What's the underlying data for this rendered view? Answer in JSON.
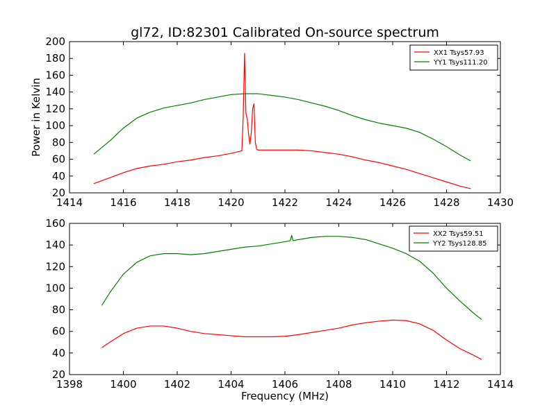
{
  "chart_data": [
    {
      "type": "line",
      "title": "gl72, ID:82301 Calibrated On-source spectrum",
      "xlabel": "",
      "ylabel": "Power in Kelvin",
      "xlim": [
        1414,
        1430
      ],
      "ylim": [
        20,
        200
      ],
      "xticks": [
        1414,
        1416,
        1418,
        1420,
        1422,
        1424,
        1426,
        1428,
        1430
      ],
      "yticks": [
        20,
        40,
        60,
        80,
        100,
        120,
        140,
        160,
        180,
        200
      ],
      "grid": false,
      "legend_position": "top-right",
      "series": [
        {
          "name": "XX1 Tsys57.93",
          "color": "#ff0000",
          "x": [
            1414.9,
            1415.5,
            1416.0,
            1416.5,
            1417.0,
            1417.5,
            1418.0,
            1418.5,
            1419.0,
            1419.5,
            1420.0,
            1420.4,
            1420.45,
            1420.5,
            1420.55,
            1420.6,
            1420.65,
            1420.7,
            1420.75,
            1420.8,
            1420.85,
            1420.9,
            1420.95,
            1421.0,
            1421.5,
            1422.0,
            1422.5,
            1423.0,
            1423.5,
            1424.0,
            1424.5,
            1425.0,
            1425.5,
            1426.0,
            1426.5,
            1427.0,
            1427.5,
            1428.0,
            1428.5,
            1428.9
          ],
          "y": [
            31,
            38,
            44,
            49,
            52,
            54,
            57,
            59,
            62,
            64,
            67,
            70,
            110,
            186,
            115,
            108,
            90,
            78,
            92,
            120,
            126,
            80,
            72,
            71,
            71,
            71,
            71,
            70,
            68,
            66,
            63,
            59,
            56,
            52,
            48,
            43,
            38,
            33,
            28,
            25
          ]
        },
        {
          "name": "YY1 Tsys111.20",
          "color": "#008000",
          "x": [
            1414.9,
            1415.5,
            1416.0,
            1416.5,
            1417.0,
            1417.5,
            1418.0,
            1418.5,
            1419.0,
            1419.5,
            1420.0,
            1420.5,
            1421.0,
            1421.5,
            1422.0,
            1422.5,
            1423.0,
            1423.5,
            1424.0,
            1424.5,
            1425.0,
            1425.5,
            1426.0,
            1426.5,
            1427.0,
            1427.5,
            1428.0,
            1428.5,
            1428.9
          ],
          "y": [
            66,
            82,
            97,
            109,
            116,
            121,
            124,
            127,
            131,
            134,
            137,
            138,
            138,
            136,
            134,
            131,
            127,
            123,
            118,
            112,
            107,
            103,
            100,
            97,
            92,
            84,
            75,
            65,
            58
          ]
        }
      ]
    },
    {
      "type": "line",
      "title": "",
      "xlabel": "Frequency (MHz)",
      "ylabel": "",
      "xlim": [
        1398,
        1414
      ],
      "ylim": [
        20,
        160
      ],
      "xticks": [
        1398,
        1400,
        1402,
        1404,
        1406,
        1408,
        1410,
        1412,
        1414
      ],
      "yticks": [
        20,
        40,
        60,
        80,
        100,
        120,
        140,
        160
      ],
      "grid": false,
      "legend_position": "top-right",
      "series": [
        {
          "name": "XX2 Tsys59.51",
          "color": "#ff0000",
          "x": [
            1399.2,
            1399.5,
            1400.0,
            1400.5,
            1401.0,
            1401.5,
            1402.0,
            1402.5,
            1403.0,
            1403.5,
            1404.0,
            1404.5,
            1405.0,
            1405.5,
            1406.0,
            1406.5,
            1407.0,
            1407.5,
            1408.0,
            1408.5,
            1409.0,
            1409.5,
            1410.0,
            1410.5,
            1411.0,
            1411.5,
            1412.0,
            1412.5,
            1413.0,
            1413.3
          ],
          "y": [
            45,
            50,
            58,
            63,
            65,
            65,
            63,
            60,
            58,
            57,
            56,
            55,
            55,
            55,
            55.5,
            57,
            59,
            61,
            63,
            66,
            68,
            69.5,
            70.5,
            70,
            67,
            61,
            52,
            44,
            38,
            34
          ]
        },
        {
          "name": "YY2 Tsys128.85",
          "color": "#008000",
          "x": [
            1399.2,
            1399.5,
            1400.0,
            1400.5,
            1401.0,
            1401.5,
            1402.0,
            1402.5,
            1403.0,
            1403.5,
            1404.0,
            1404.5,
            1405.0,
            1405.5,
            1406.0,
            1406.2,
            1406.25,
            1406.3,
            1406.5,
            1407.0,
            1407.5,
            1408.0,
            1408.5,
            1409.0,
            1409.5,
            1410.0,
            1410.5,
            1411.0,
            1411.5,
            1412.0,
            1412.5,
            1413.0,
            1413.3
          ],
          "y": [
            84,
            96,
            113,
            124,
            130,
            132,
            132,
            131,
            132,
            134,
            136,
            138,
            139,
            141,
            143,
            144,
            149,
            144,
            145,
            147,
            148,
            148,
            147,
            145,
            141,
            137,
            132,
            125,
            114,
            100,
            88,
            77,
            71
          ]
        }
      ]
    }
  ]
}
